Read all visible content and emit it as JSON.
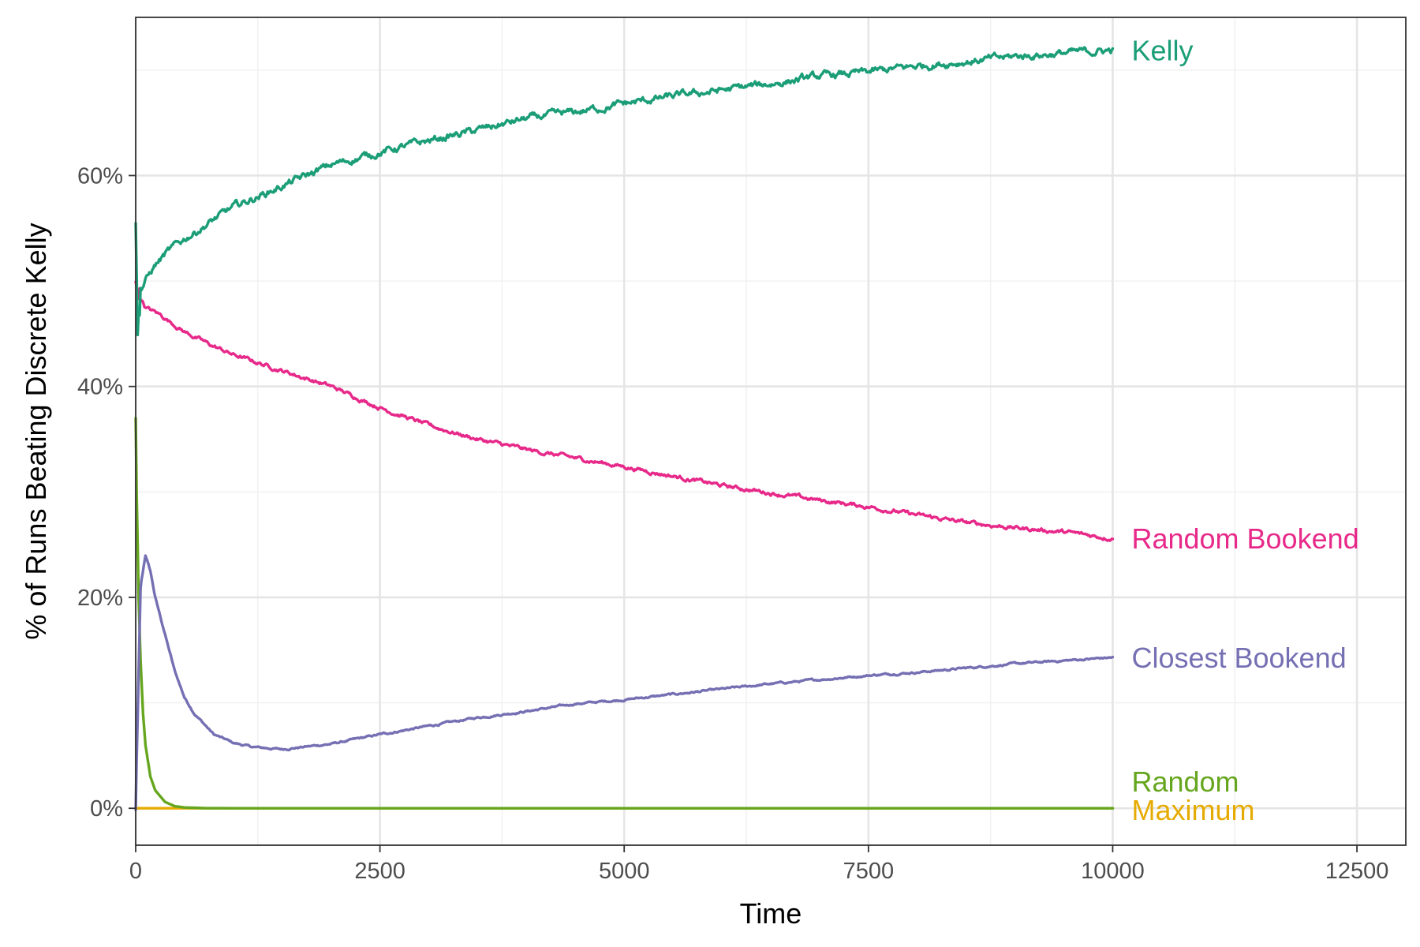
{
  "chart_data": {
    "type": "line",
    "title": "",
    "xlabel": "Time",
    "ylabel": "% of Runs Beating Discrete Kelly",
    "xlim": [
      0,
      13000
    ],
    "ylim": [
      -3.5,
      75
    ],
    "x_ticks": [
      0,
      2500,
      5000,
      7500,
      10000,
      12500
    ],
    "x_tick_labels": [
      "0",
      "2500",
      "5000",
      "7500",
      "10000",
      "12500"
    ],
    "y_ticks": [
      0,
      20,
      40,
      60
    ],
    "y_tick_labels": [
      "0%",
      "20%",
      "40%",
      "60%"
    ],
    "grid": true,
    "legend": "direct labels at line ends",
    "series": [
      {
        "name": "Kelly",
        "color": "#1b9e77",
        "noise": 0.45,
        "x": [
          0,
          20,
          50,
          100,
          200,
          300,
          500,
          750,
          1000,
          1500,
          2000,
          2500,
          3000,
          3500,
          4000,
          4500,
          5000,
          5500,
          6000,
          6500,
          7000,
          7500,
          8000,
          8500,
          9000,
          9500,
          10000
        ],
        "y": [
          56.5,
          46,
          49,
          50,
          51.5,
          52.5,
          54,
          55.5,
          57,
          59,
          61,
          62.2,
          63.3,
          64.3,
          65.4,
          66,
          66.8,
          67.5,
          68.1,
          68.7,
          69.4,
          69.8,
          70.4,
          70.8,
          71.3,
          71.6,
          71.9
        ]
      },
      {
        "name": "Random Bookend",
        "color": "#e7298a",
        "noise": 0.25,
        "x": [
          0,
          50,
          100,
          250,
          500,
          750,
          1000,
          1500,
          2000,
          2500,
          3000,
          3500,
          4000,
          4500,
          5000,
          5500,
          6000,
          6500,
          7000,
          7500,
          8000,
          8500,
          9000,
          9500,
          10000
        ],
        "y": [
          49.5,
          48.5,
          47.5,
          46.8,
          45.2,
          44,
          43,
          41.5,
          40,
          38,
          36.3,
          35,
          34,
          33.2,
          32.4,
          31.5,
          30.6,
          29.9,
          29.2,
          28.6,
          27.8,
          27.1,
          26.6,
          26.2,
          25.6
        ]
      },
      {
        "name": "Closest Bookend",
        "color": "#7570b3",
        "noise": 0.12,
        "x": [
          0,
          50,
          100,
          150,
          200,
          300,
          400,
          500,
          600,
          800,
          1000,
          1200,
          1500,
          2000,
          2500,
          3000,
          3500,
          4000,
          4500,
          5000,
          5500,
          6000,
          6500,
          7000,
          7500,
          8000,
          8500,
          9000,
          9500,
          10000
        ],
        "y": [
          0,
          21,
          24,
          22.5,
          20,
          16.5,
          13,
          10.5,
          9,
          7,
          6.2,
          5.8,
          5.6,
          6.1,
          7.0,
          7.8,
          8.6,
          9.2,
          9.9,
          10.3,
          10.8,
          11.3,
          11.8,
          12.2,
          12.6,
          12.9,
          13.3,
          13.7,
          14.0,
          14.3
        ]
      },
      {
        "name": "Random",
        "color": "#66a61e",
        "noise": 0,
        "x": [
          0,
          10,
          20,
          30,
          50,
          75,
          100,
          150,
          200,
          300,
          400,
          500,
          700,
          1000,
          2000,
          5000,
          10000
        ],
        "y": [
          37,
          30,
          25,
          20,
          14,
          9,
          6,
          3,
          1.7,
          0.6,
          0.2,
          0.08,
          0.02,
          0,
          0,
          0,
          0
        ]
      },
      {
        "name": "Maximum",
        "color": "#e6ab02",
        "noise": 0,
        "x": [
          0,
          10000
        ],
        "y": [
          0,
          0
        ]
      }
    ]
  }
}
